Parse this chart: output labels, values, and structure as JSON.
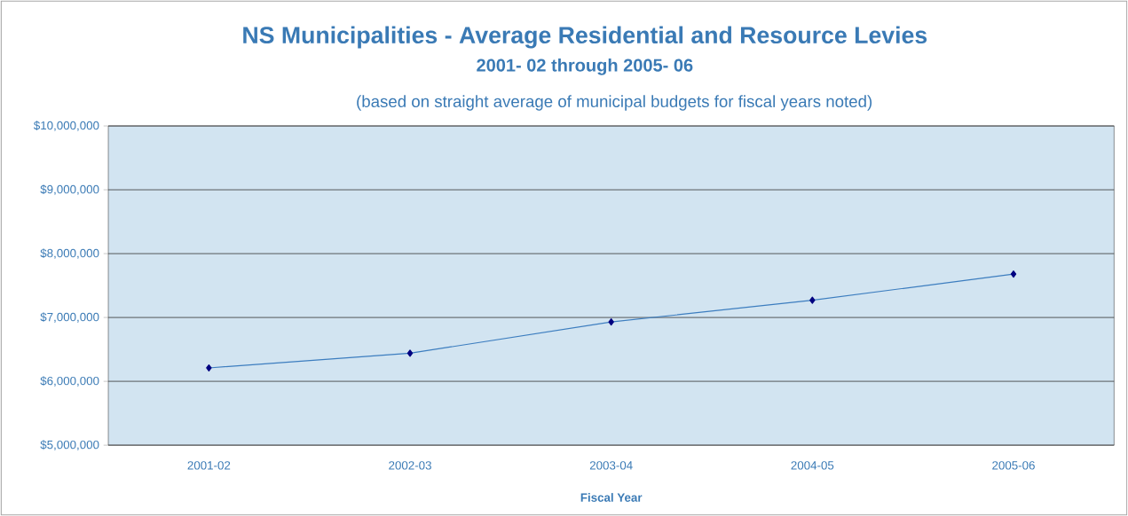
{
  "chart_data": {
    "type": "line",
    "title": "NS Municipalities - Average Residential and Resource Levies",
    "subtitle": "2001- 02 through 2005- 06",
    "annotations": [
      "(based on straight average of municipal budgets for fiscal years noted)"
    ],
    "xlabel": "Fiscal Year",
    "categories": [
      "2001-02",
      "2002-03",
      "2003-04",
      "2004-05",
      "2005-06"
    ],
    "series": [
      {
        "color": "#3c7dbf",
        "values": [
          6210000,
          6440000,
          6930000,
          7270000,
          7680000
        ]
      }
    ],
    "ylim": [
      5000000,
      10000000
    ],
    "yticks": [
      {
        "value": 5000000,
        "label": "$5,000,000"
      },
      {
        "value": 6000000,
        "label": "$6,000,000"
      },
      {
        "value": 7000000,
        "label": "$7,000,000"
      },
      {
        "value": 8000000,
        "label": "$8,000,000"
      },
      {
        "value": 9000000,
        "label": "$9,000,000"
      },
      {
        "value": 10000000,
        "label": "$10,000,000"
      }
    ],
    "grid": "y",
    "marker": "diamond"
  }
}
